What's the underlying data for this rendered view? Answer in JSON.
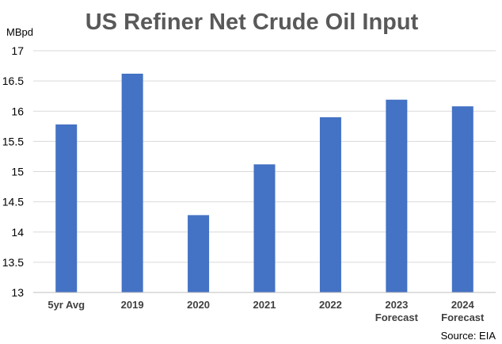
{
  "chart_data": {
    "type": "bar",
    "title": "US Refiner Net Crude Oil Input",
    "ylabel": "MBpd",
    "xlabel": "",
    "categories": [
      [
        "5yr Avg"
      ],
      [
        "2019"
      ],
      [
        "2020"
      ],
      [
        "2021"
      ],
      [
        "2022"
      ],
      [
        "2023",
        "Forecast"
      ],
      [
        "2024",
        "Forecast"
      ]
    ],
    "values": [
      15.78,
      16.62,
      14.28,
      15.12,
      15.9,
      16.19,
      16.08
    ],
    "ylim": [
      13,
      17
    ],
    "yticks": [
      "13",
      "13.5",
      "14",
      "14.5",
      "15",
      "15.5",
      "16",
      "16.5",
      "17"
    ],
    "grid": true,
    "legend": "none",
    "bar_color": "#4472c4",
    "source": "Source: EIA"
  }
}
